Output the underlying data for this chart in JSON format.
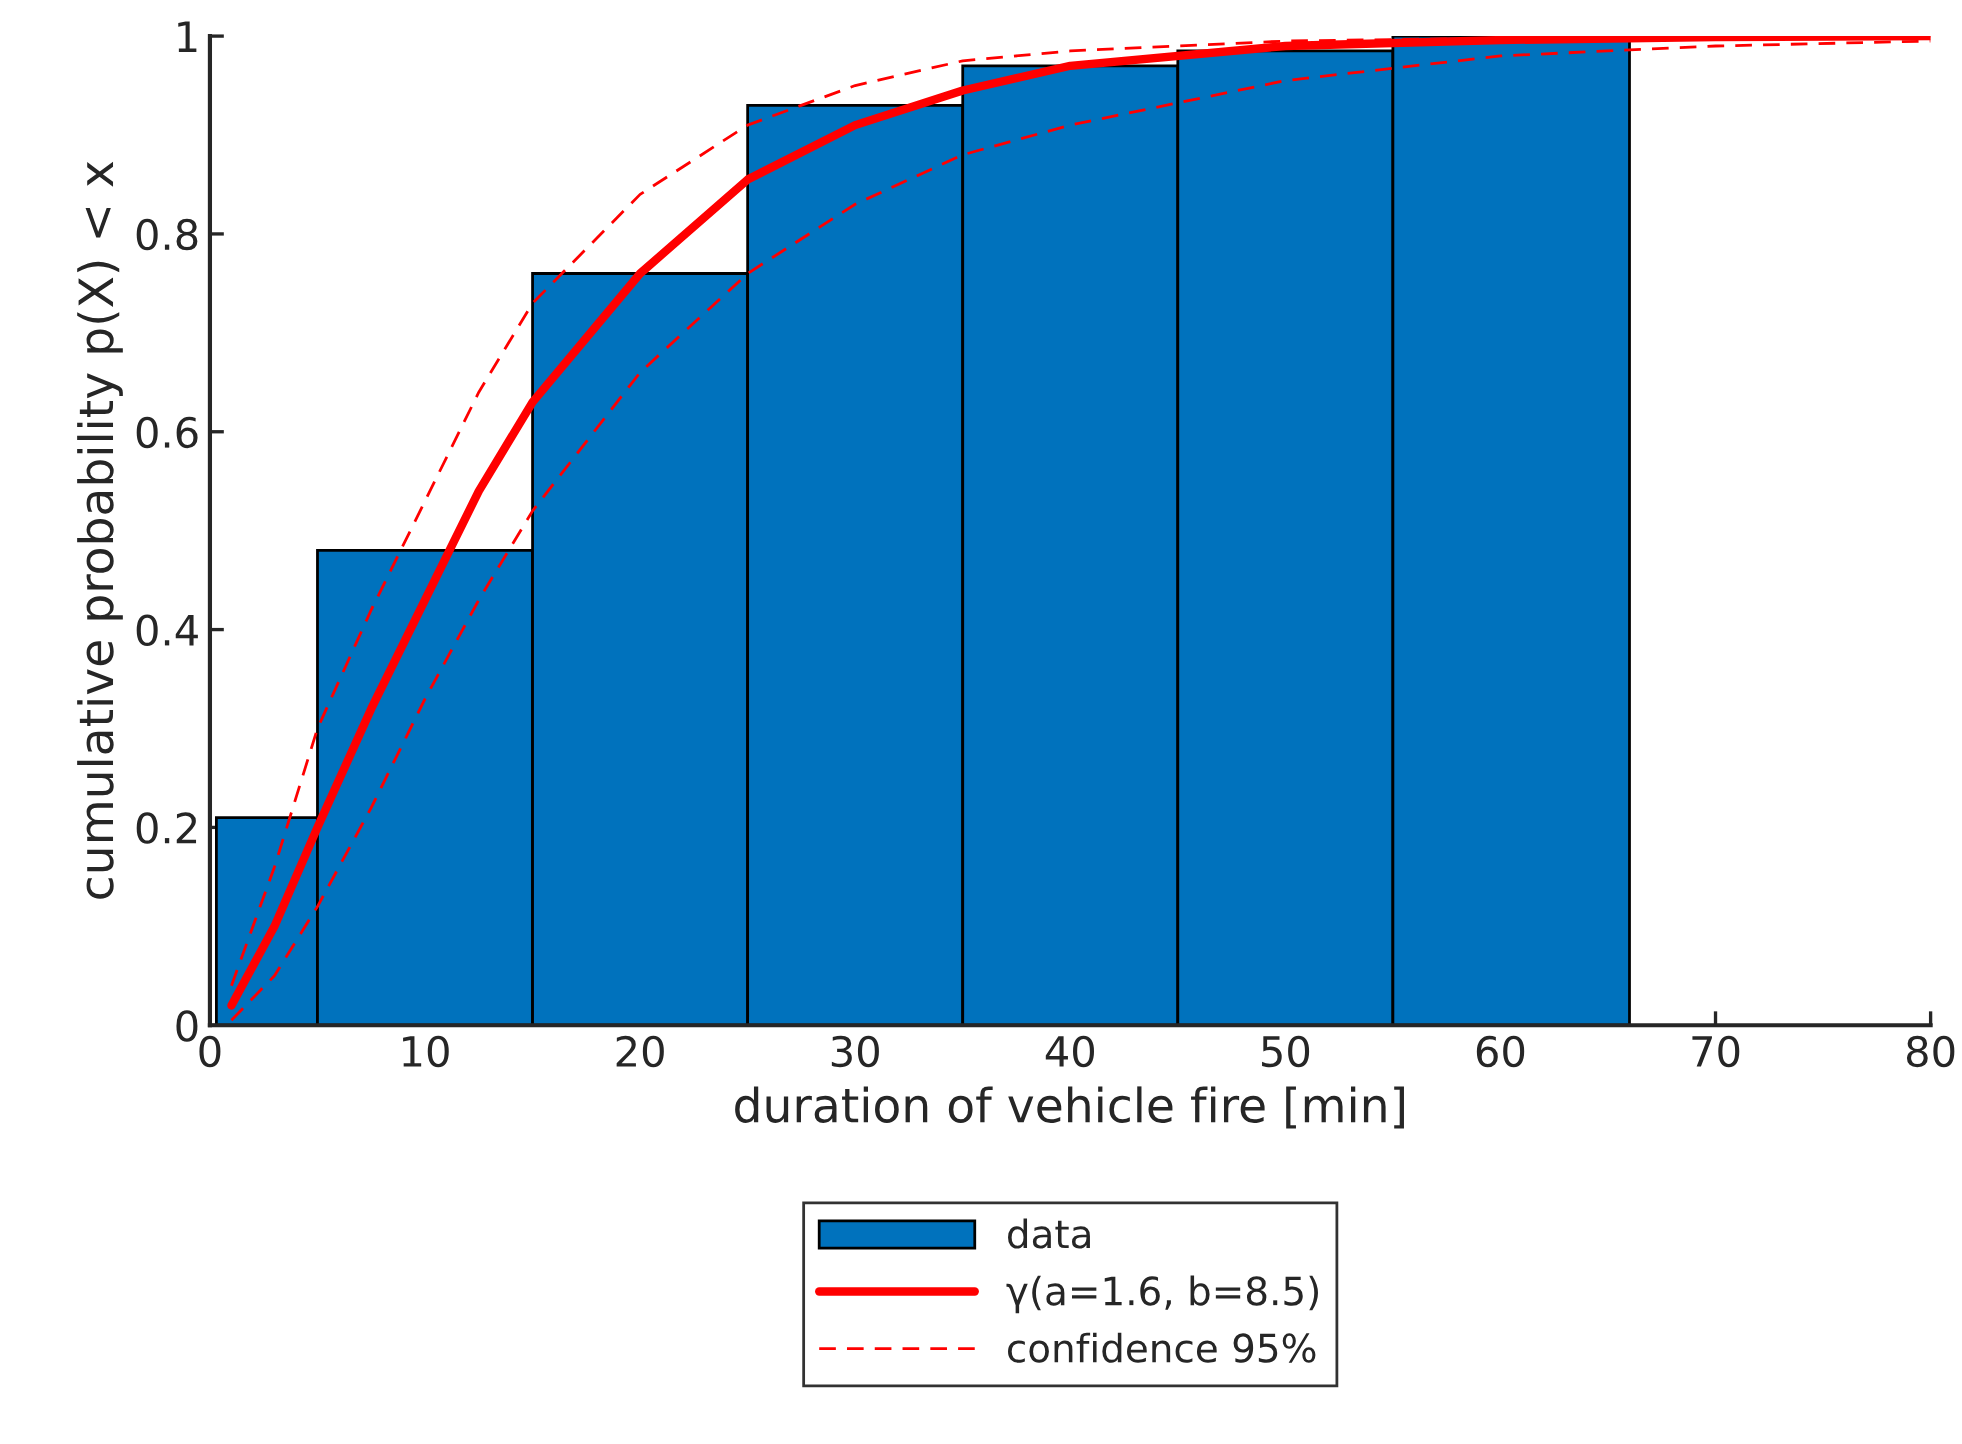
{
  "chart_data": {
    "type": "histogram",
    "xlabel": "duration of vehicle fire [min]",
    "ylabel": "cumulative probability p(X) < x",
    "series": [
      {
        "name": "data",
        "color": "#0072bd",
        "bins": [
          0.3,
          5,
          15,
          25,
          35,
          45,
          55,
          66
        ],
        "values": [
          0.21,
          0.48,
          0.76,
          0.93,
          0.97,
          0.985,
          1.0
        ]
      },
      {
        "type": "line",
        "name": "γ(a=1.6, b=8.5)",
        "color": "#ff0000",
        "line_style": "solid",
        "x": [
          1,
          3,
          5,
          7.5,
          10,
          12.5,
          15,
          20,
          25,
          30,
          35,
          40,
          50,
          60,
          70,
          80
        ],
        "values": [
          0.02,
          0.1,
          0.2,
          0.32,
          0.43,
          0.54,
          0.63,
          0.76,
          0.855,
          0.91,
          0.945,
          0.97,
          0.99,
          0.996,
          0.999,
          1.0
        ]
      },
      {
        "type": "line",
        "name": "confidence 95%",
        "color": "#ff0000",
        "line_style": "dashed",
        "x": [
          1,
          3,
          5,
          7.5,
          10,
          12.5,
          15,
          20,
          25,
          30,
          35,
          40,
          50,
          60,
          70,
          80
        ],
        "values": [
          0.04,
          0.16,
          0.3,
          0.42,
          0.53,
          0.64,
          0.73,
          0.84,
          0.91,
          0.95,
          0.975,
          0.985,
          0.995,
          0.998,
          1.0,
          1.0
        ]
      },
      {
        "type": "line",
        "color": "#ff0000",
        "line_style": "dashed",
        "x": [
          1,
          3,
          5,
          7.5,
          10,
          12.5,
          15,
          20,
          25,
          30,
          35,
          40,
          50,
          60,
          70,
          80
        ],
        "values": [
          0.005,
          0.05,
          0.12,
          0.22,
          0.33,
          0.43,
          0.52,
          0.66,
          0.76,
          0.83,
          0.88,
          0.91,
          0.955,
          0.98,
          0.99,
          0.995
        ]
      }
    ],
    "xlim": [
      0,
      80
    ],
    "xticks": [
      0,
      10,
      20,
      30,
      40,
      50,
      60,
      70,
      80
    ],
    "ylim": [
      0,
      1
    ],
    "yticks": [
      0,
      0.2,
      0.4,
      0.6,
      0.8,
      1
    ],
    "legend": "bottom",
    "grid": false
  }
}
